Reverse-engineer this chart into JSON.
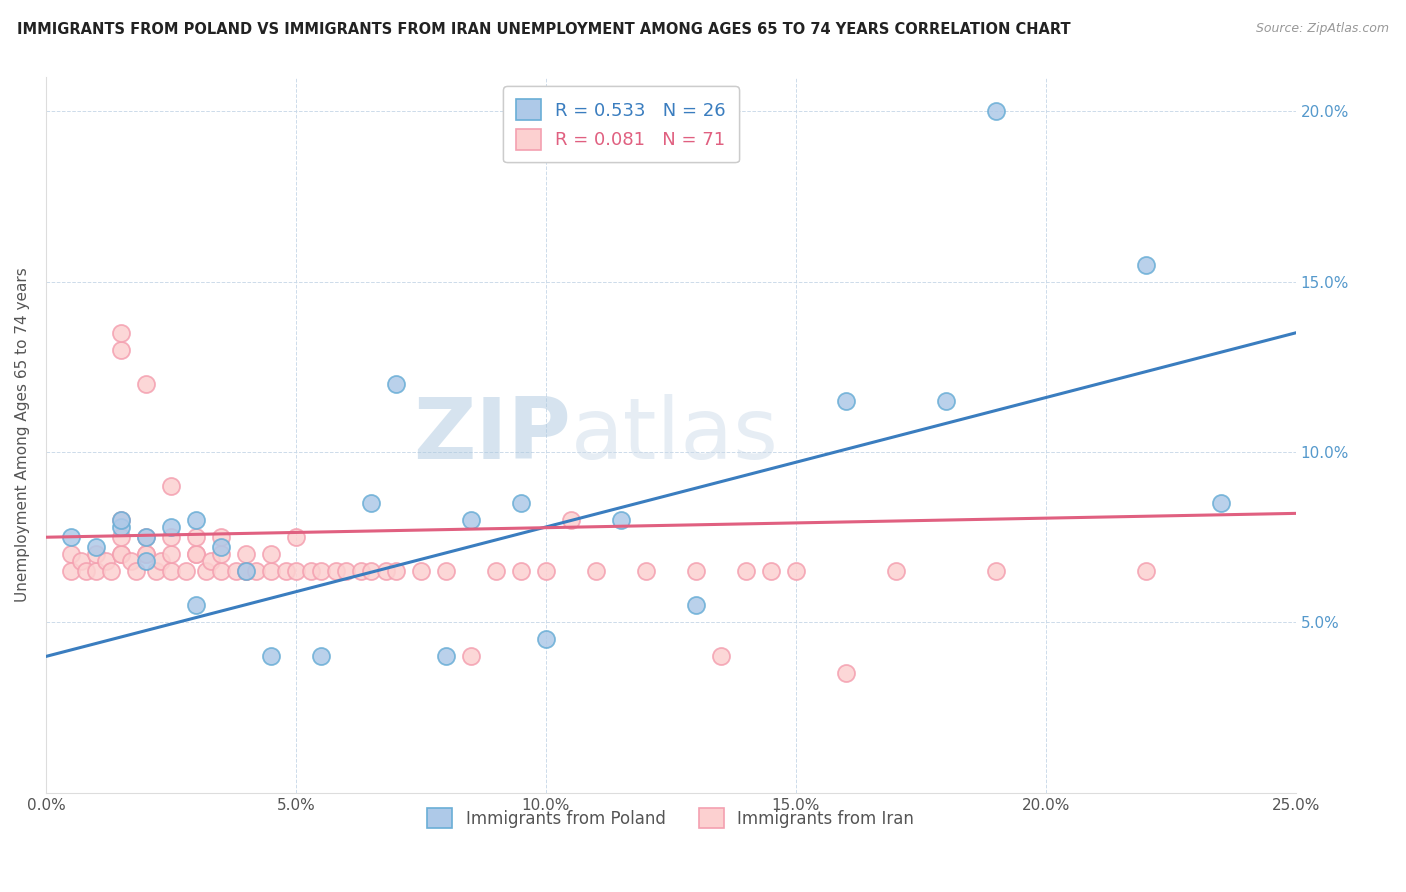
{
  "title": "IMMIGRANTS FROM POLAND VS IMMIGRANTS FROM IRAN UNEMPLOYMENT AMONG AGES 65 TO 74 YEARS CORRELATION CHART",
  "source": "Source: ZipAtlas.com",
  "ylabel": "Unemployment Among Ages 65 to 74 years",
  "x_label_poland": "Immigrants from Poland",
  "x_label_iran": "Immigrants from Iran",
  "xlim": [
    0,
    0.25
  ],
  "ylim": [
    0,
    0.21
  ],
  "xticks": [
    0.0,
    0.05,
    0.1,
    0.15,
    0.2,
    0.25
  ],
  "xticklabels": [
    "0.0%",
    "5.0%",
    "10.0%",
    "15.0%",
    "20.0%",
    "25.0%"
  ],
  "yticks_left": [
    0.0,
    0.05,
    0.1,
    0.15,
    0.2
  ],
  "yticklabels_left": [
    "",
    "",
    "",
    "",
    ""
  ],
  "yticks_right": [
    0.05,
    0.1,
    0.15,
    0.2
  ],
  "yticklabels_right": [
    "5.0%",
    "10.0%",
    "15.0%",
    "20.0%"
  ],
  "R_poland": 0.533,
  "N_poland": 26,
  "R_iran": 0.081,
  "N_iran": 71,
  "poland_fill_color": "#aec9e8",
  "iran_fill_color": "#fcd0d0",
  "poland_edge_color": "#6aaed6",
  "iran_edge_color": "#f4a0b0",
  "poland_line_color": "#3a7dbf",
  "iran_line_color": "#e06080",
  "legend_text_poland_color": "#3a7dbf",
  "legend_text_iran_color": "#e06080",
  "watermark_color": "#c5d8ed",
  "poland_line_start_y": 0.04,
  "poland_line_end_y": 0.135,
  "iran_line_start_y": 0.075,
  "iran_line_end_y": 0.082,
  "poland_scatter_x": [
    0.005,
    0.01,
    0.015,
    0.015,
    0.02,
    0.02,
    0.025,
    0.03,
    0.03,
    0.035,
    0.04,
    0.045,
    0.055,
    0.065,
    0.07,
    0.08,
    0.085,
    0.095,
    0.1,
    0.115,
    0.13,
    0.16,
    0.18,
    0.19,
    0.22,
    0.235
  ],
  "poland_scatter_y": [
    0.075,
    0.072,
    0.078,
    0.08,
    0.068,
    0.075,
    0.078,
    0.08,
    0.055,
    0.072,
    0.065,
    0.04,
    0.04,
    0.085,
    0.12,
    0.04,
    0.08,
    0.085,
    0.045,
    0.08,
    0.055,
    0.115,
    0.115,
    0.2,
    0.155,
    0.085
  ],
  "iran_scatter_x": [
    0.005,
    0.005,
    0.007,
    0.008,
    0.01,
    0.01,
    0.012,
    0.013,
    0.015,
    0.015,
    0.015,
    0.015,
    0.015,
    0.015,
    0.017,
    0.018,
    0.02,
    0.02,
    0.02,
    0.02,
    0.022,
    0.023,
    0.025,
    0.025,
    0.025,
    0.025,
    0.028,
    0.03,
    0.03,
    0.03,
    0.032,
    0.033,
    0.035,
    0.035,
    0.035,
    0.038,
    0.04,
    0.04,
    0.04,
    0.042,
    0.045,
    0.045,
    0.048,
    0.05,
    0.05,
    0.053,
    0.055,
    0.058,
    0.06,
    0.063,
    0.065,
    0.068,
    0.07,
    0.075,
    0.08,
    0.085,
    0.09,
    0.095,
    0.1,
    0.105,
    0.11,
    0.12,
    0.13,
    0.135,
    0.14,
    0.145,
    0.15,
    0.16,
    0.17,
    0.19,
    0.22
  ],
  "iran_scatter_y": [
    0.07,
    0.065,
    0.068,
    0.065,
    0.065,
    0.07,
    0.068,
    0.065,
    0.07,
    0.07,
    0.075,
    0.08,
    0.13,
    0.135,
    0.068,
    0.065,
    0.07,
    0.07,
    0.075,
    0.12,
    0.065,
    0.068,
    0.065,
    0.07,
    0.075,
    0.09,
    0.065,
    0.07,
    0.07,
    0.075,
    0.065,
    0.068,
    0.065,
    0.07,
    0.075,
    0.065,
    0.065,
    0.07,
    0.065,
    0.065,
    0.065,
    0.07,
    0.065,
    0.065,
    0.075,
    0.065,
    0.065,
    0.065,
    0.065,
    0.065,
    0.065,
    0.065,
    0.065,
    0.065,
    0.065,
    0.04,
    0.065,
    0.065,
    0.065,
    0.08,
    0.065,
    0.065,
    0.065,
    0.04,
    0.065,
    0.065,
    0.065,
    0.035,
    0.065,
    0.065,
    0.065
  ]
}
